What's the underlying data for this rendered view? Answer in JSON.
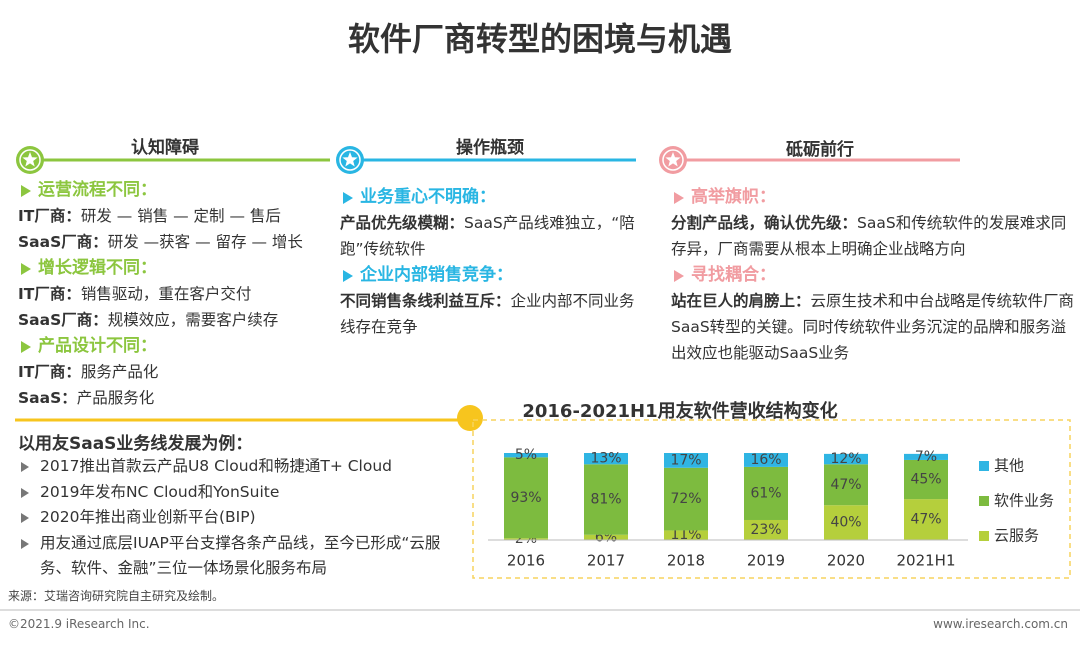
{
  "header": {
    "title": "软件厂商转型的困境与机遇"
  },
  "columns": [
    {
      "title": "认知障碍",
      "color": "#8cc63f",
      "sections": [
        {
          "heading": "运营流程不同：",
          "lines": [
            {
              "label": "IT厂商：",
              "text": "研发 — 销售 — 定制 — 售后"
            },
            {
              "label": "SaaS厂商：",
              "text": "研发 —获客 — 留存 — 增长"
            }
          ]
        },
        {
          "heading": "增长逻辑不同：",
          "lines": [
            {
              "label": "IT厂商：",
              "text": "销售驱动，重在客户交付"
            },
            {
              "label": "SaaS厂商：",
              "text": "规模效应，需要客户续存"
            }
          ]
        },
        {
          "heading": "产品设计不同：",
          "lines": [
            {
              "label": "IT厂商：",
              "text": "服务产品化"
            },
            {
              "label": "SaaS：",
              "text": "产品服务化"
            }
          ]
        }
      ]
    },
    {
      "title": "操作瓶颈",
      "color": "#29b6e3",
      "sections": [
        {
          "heading": "业务重心不明确：",
          "lines": [
            {
              "label": "产品优先级模糊：",
              "text": "SaaS产品线难独立，“陪跑”传统软件"
            }
          ]
        },
        {
          "heading": "企业内部销售竞争：",
          "lines": [
            {
              "label": "不同销售条线利益互斥：",
              "text": "企业内部不同业务线存在竞争"
            }
          ]
        }
      ]
    },
    {
      "title": "砥砺前行",
      "color": "#f19ca1",
      "sections": [
        {
          "heading": "高举旗帜：",
          "lines": [
            {
              "label": "分割产品线，确认优先级：",
              "text": "SaaS和传统软件的发展难求同存异，厂商需要从根本上明确企业战略方向"
            }
          ]
        },
        {
          "heading": "寻找耦合：",
          "lines": [
            {
              "label": "站在巨人的肩膀上：",
              "text": "云原生技术和中台战略是传统软件厂商SaaS转型的关键。同时传统软件业务沉淀的品牌和服务溢出效应也能驱动SaaS业务"
            }
          ]
        }
      ]
    }
  ],
  "example": {
    "title": "以用友SaaS业务线发展为例：",
    "items": [
      "2017推出首款云产品U8 Cloud和畅捷通T+ Cloud",
      "2019年发布NC Cloud和YonSuite",
      "2020年推出商业创新平台(BIP)",
      "用友通过底层IUAP平台支撑各条产品线，至今已形成“云服务、软件、金融”三位一体场景化服务布局"
    ]
  },
  "chart_data": {
    "type": "bar",
    "stacked": true,
    "title": "2016-2021H1用友软件营收结构变化",
    "categories": [
      "2016",
      "2017",
      "2018",
      "2019",
      "2020",
      "2021H1"
    ],
    "series": [
      {
        "name": "云服务",
        "color": "#b5cf3c",
        "values": [
          2,
          6,
          11,
          23,
          40,
          47
        ],
        "value_labels": [
          "2%",
          "6%",
          "11%",
          "23%",
          "40%",
          "47%"
        ]
      },
      {
        "name": "软件业务",
        "color": "#7dbb3f",
        "values": [
          93,
          81,
          72,
          61,
          47,
          45
        ],
        "value_labels": [
          "93%",
          "81%",
          "72%",
          "61%",
          "47%",
          "45%"
        ]
      },
      {
        "name": "其他",
        "color": "#2fb5e3",
        "values": [
          5,
          13,
          17,
          16,
          12,
          7
        ],
        "value_labels": [
          "5%",
          "13%",
          "17%",
          "16%",
          "12%",
          "7%"
        ]
      }
    ],
    "legend_position": "right"
  },
  "source": "来源：艾瑞咨询研究院自主研究及绘制。",
  "footer": {
    "left": "©2021.9 iResearch Inc.",
    "right": "www.iresearch.com.cn"
  }
}
